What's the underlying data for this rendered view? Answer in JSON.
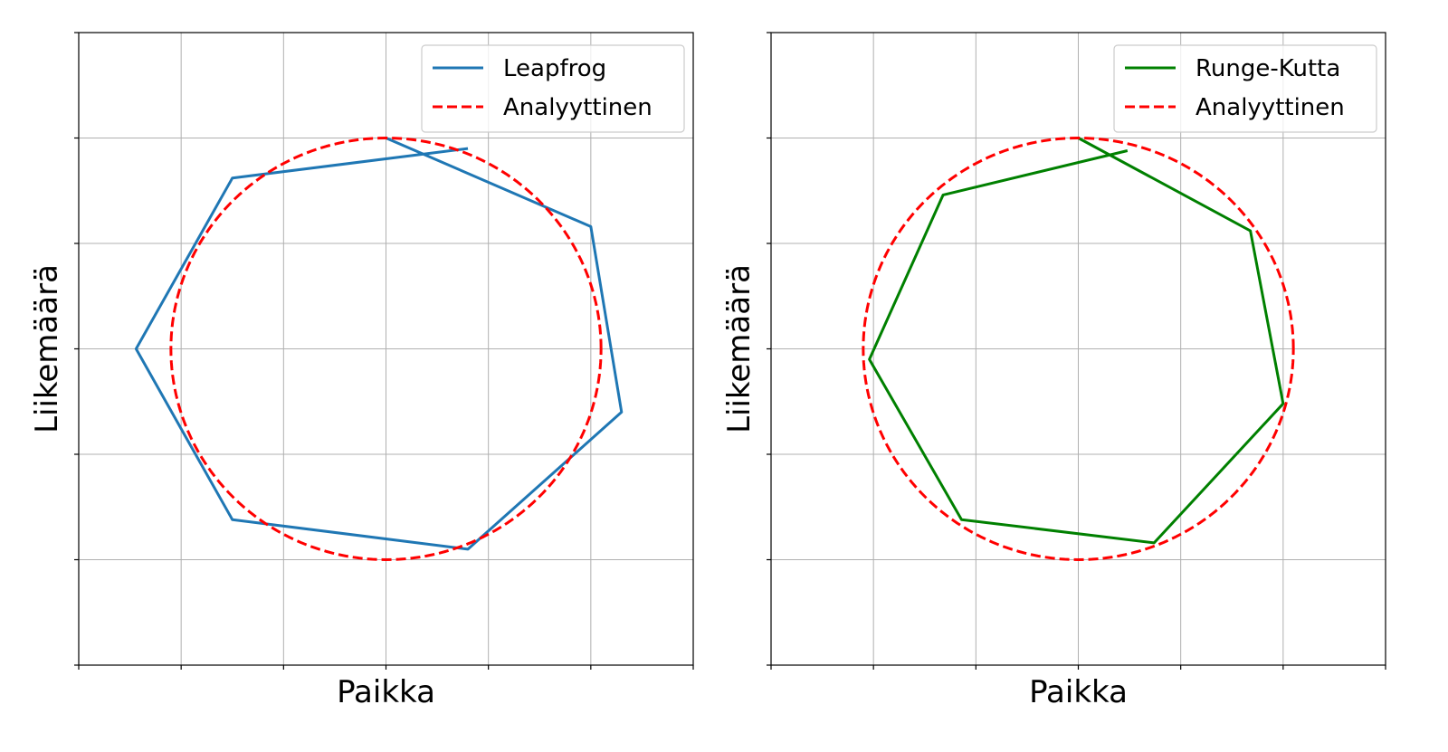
{
  "chart_data": [
    {
      "type": "line",
      "xlabel": "Paikka",
      "ylabel": "Liikemäärä",
      "xlim": [
        -1.5,
        1.5
      ],
      "ylim": [
        -1.5,
        1.5
      ],
      "grid": true,
      "legend_position": "top-right",
      "series": [
        {
          "name": "Leapfrog",
          "color": "#1f77b4",
          "style": "solid",
          "x": [
            0.0,
            1.0,
            1.15,
            0.4,
            -0.75,
            -1.22,
            -0.75,
            0.4
          ],
          "y": [
            1.0,
            0.58,
            -0.3,
            -0.95,
            -0.81,
            0.0,
            0.81,
            0.95
          ]
        },
        {
          "name": "Analyyttinen",
          "color": "#ff0000",
          "style": "dashed",
          "curve": "circle",
          "center": [
            0.0,
            0.0
          ],
          "radius": [
            1.05,
            1.0
          ]
        }
      ]
    },
    {
      "type": "line",
      "xlabel": "Paikka",
      "ylabel": "Liikemäärä",
      "xlim": [
        -1.5,
        1.5
      ],
      "ylim": [
        -1.5,
        1.5
      ],
      "grid": true,
      "legend_position": "top-right",
      "series": [
        {
          "name": "Runge-Kutta",
          "color": "#008000",
          "style": "solid",
          "x": [
            0.0,
            0.84,
            1.0,
            0.37,
            -0.57,
            -1.02,
            -0.66,
            0.24
          ],
          "y": [
            1.0,
            0.56,
            -0.26,
            -0.92,
            -0.81,
            -0.05,
            0.73,
            0.94
          ]
        },
        {
          "name": "Analyyttinen",
          "color": "#ff0000",
          "style": "dashed",
          "curve": "circle",
          "center": [
            0.0,
            0.0
          ],
          "radius": [
            1.05,
            1.0
          ]
        }
      ]
    }
  ]
}
